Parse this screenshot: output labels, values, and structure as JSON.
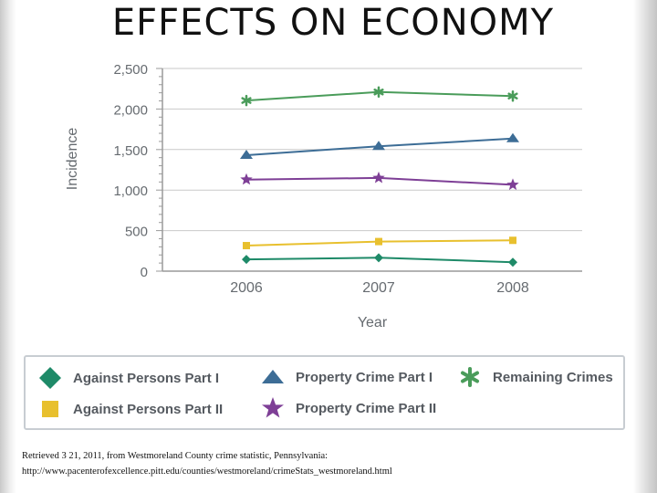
{
  "slide": {
    "title": "EFFECTS ON ECONOMY",
    "citation_line1": "Retrieved 3 21, 2011, from Westmoreland County crime statistic, Pennsylvania:",
    "citation_line2": "http://www.pacenterofexcellence.pitt.edu/counties/westmoreland/crimeStats_westmoreland.html"
  },
  "chart_data": {
    "type": "line",
    "title": "",
    "xlabel": "Year",
    "ylabel": "Incidence",
    "categories": [
      "2006",
      "2007",
      "2008"
    ],
    "y_ticks": [
      0,
      500,
      1000,
      1500,
      2000,
      2500
    ],
    "y_tick_labels": [
      "0",
      "500",
      "1,000",
      "1,500",
      "2,000",
      "2,500"
    ],
    "ylim": [
      0,
      2500
    ],
    "grid": true,
    "legend_position": "bottom",
    "series": [
      {
        "name": "Against Persons Part I",
        "values": [
          145,
          165,
          110
        ],
        "color": "#1e8a68",
        "marker": "diamond"
      },
      {
        "name": "Against Persons Part II",
        "values": [
          315,
          365,
          380
        ],
        "color": "#e8c02e",
        "marker": "square"
      },
      {
        "name": "Property Crime Part I",
        "values": [
          1430,
          1540,
          1635
        ],
        "color": "#3d6d96",
        "marker": "triangle"
      },
      {
        "name": "Property Crime Part II",
        "values": [
          1130,
          1150,
          1065
        ],
        "color": "#7e3f96",
        "marker": "star"
      },
      {
        "name": "Remaining Crimes",
        "values": [
          2105,
          2210,
          2160
        ],
        "color": "#4a9c5a",
        "marker": "asterisk"
      }
    ],
    "legend_order": [
      "Against Persons Part I",
      "Property Crime Part I",
      "Remaining Crimes",
      "Against Persons Part II",
      "Property Crime Part II"
    ]
  }
}
